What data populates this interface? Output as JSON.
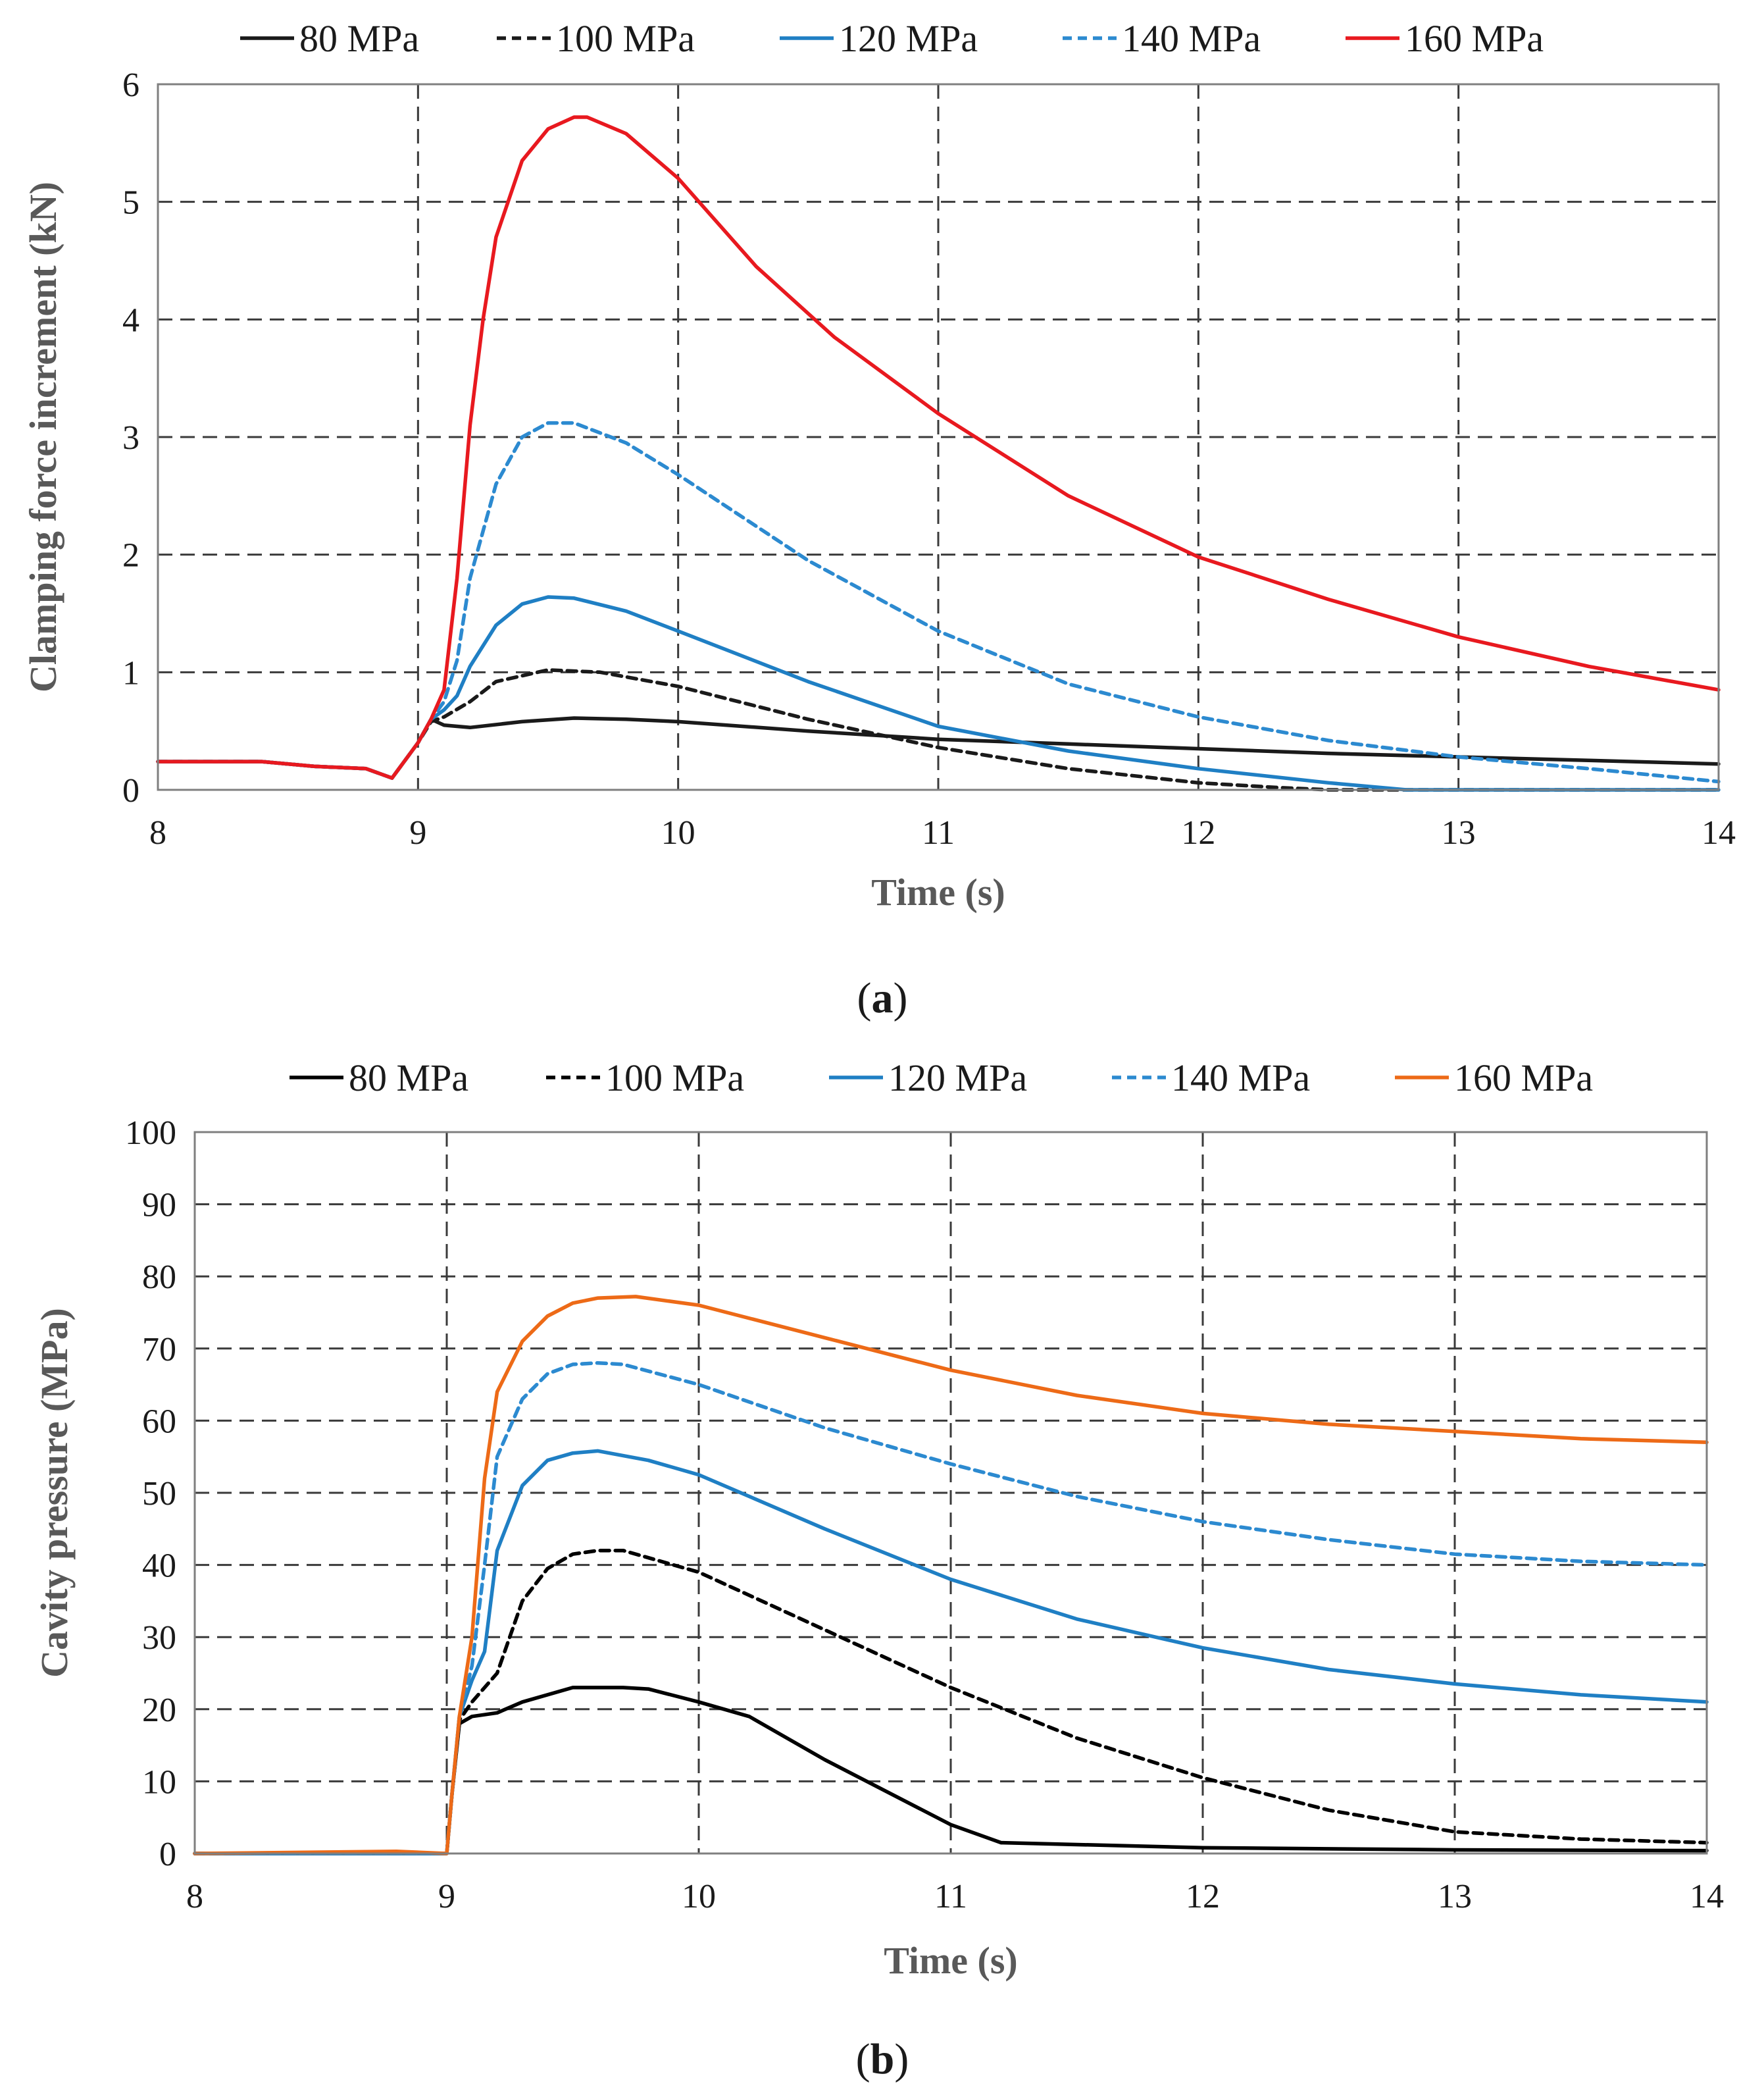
{
  "figure": {
    "captions": {
      "a": "a",
      "b": "b"
    }
  },
  "chart_data": [
    {
      "id": "a",
      "type": "line",
      "title": "",
      "xlabel": "Time (s)",
      "ylabel": "Clamping force increment (kN)",
      "xlim": [
        8,
        14
      ],
      "ylim": [
        0,
        6
      ],
      "xticks": [
        8,
        9,
        10,
        11,
        12,
        13,
        14
      ],
      "yticks": [
        0,
        1,
        2,
        3,
        4,
        5,
        6
      ],
      "grid": true,
      "legend_position": "top",
      "series": [
        {
          "name": "80 MPa",
          "color": "#1a1a1a",
          "dash": "solid",
          "x": [
            8.0,
            8.4,
            8.6,
            8.8,
            8.9,
            9.0,
            9.05,
            9.1,
            9.2,
            9.4,
            9.6,
            9.8,
            10.0,
            10.5,
            11.0,
            11.5,
            12.0,
            12.5,
            13.0,
            13.5,
            14.0
          ],
          "y": [
            0.24,
            0.24,
            0.2,
            0.18,
            0.1,
            0.4,
            0.6,
            0.55,
            0.53,
            0.58,
            0.61,
            0.6,
            0.58,
            0.5,
            0.43,
            0.39,
            0.35,
            0.31,
            0.28,
            0.25,
            0.22
          ]
        },
        {
          "name": "100 MPa",
          "color": "#1a1a1a",
          "dash": "dashed",
          "x": [
            8.0,
            8.4,
            8.6,
            8.8,
            8.9,
            9.0,
            9.05,
            9.1,
            9.2,
            9.3,
            9.5,
            9.7,
            10.0,
            10.5,
            11.0,
            11.5,
            12.0,
            12.3,
            12.5,
            14.0
          ],
          "y": [
            0.24,
            0.24,
            0.2,
            0.18,
            0.1,
            0.4,
            0.58,
            0.62,
            0.75,
            0.92,
            1.02,
            1.0,
            0.88,
            0.6,
            0.36,
            0.18,
            0.06,
            0.02,
            0.0,
            0.0
          ]
        },
        {
          "name": "120 MPa",
          "color": "#1f7fc4",
          "dash": "solid",
          "x": [
            8.0,
            8.4,
            8.6,
            8.8,
            8.9,
            9.0,
            9.05,
            9.1,
            9.15,
            9.2,
            9.3,
            9.4,
            9.5,
            9.6,
            9.8,
            10.0,
            10.5,
            11.0,
            11.5,
            12.0,
            12.5,
            12.8,
            14.0
          ],
          "y": [
            0.24,
            0.24,
            0.2,
            0.18,
            0.1,
            0.4,
            0.6,
            0.68,
            0.8,
            1.05,
            1.4,
            1.58,
            1.64,
            1.63,
            1.52,
            1.35,
            0.92,
            0.54,
            0.33,
            0.18,
            0.06,
            0.0,
            0.0
          ]
        },
        {
          "name": "140 MPa",
          "color": "#2c8ad0",
          "dash": "dashed",
          "x": [
            8.0,
            8.4,
            8.6,
            8.8,
            8.9,
            9.0,
            9.05,
            9.1,
            9.15,
            9.2,
            9.3,
            9.4,
            9.5,
            9.6,
            9.8,
            10.0,
            10.5,
            11.0,
            11.5,
            12.0,
            12.5,
            13.0,
            13.5,
            14.0
          ],
          "y": [
            0.24,
            0.24,
            0.2,
            0.18,
            0.1,
            0.4,
            0.6,
            0.75,
            1.1,
            1.8,
            2.6,
            3.0,
            3.12,
            3.12,
            2.95,
            2.68,
            1.95,
            1.35,
            0.9,
            0.62,
            0.42,
            0.28,
            0.18,
            0.07
          ]
        },
        {
          "name": "160 MPa",
          "color": "#e8191f",
          "dash": "solid",
          "x": [
            8.0,
            8.4,
            8.6,
            8.8,
            8.9,
            9.0,
            9.05,
            9.1,
            9.15,
            9.2,
            9.25,
            9.3,
            9.4,
            9.5,
            9.6,
            9.65,
            9.8,
            10.0,
            10.3,
            10.6,
            11.0,
            11.5,
            12.0,
            12.5,
            13.0,
            13.5,
            14.0
          ],
          "y": [
            0.24,
            0.24,
            0.2,
            0.18,
            0.1,
            0.4,
            0.6,
            0.85,
            1.8,
            3.1,
            4.0,
            4.7,
            5.35,
            5.62,
            5.72,
            5.72,
            5.58,
            5.2,
            4.45,
            3.85,
            3.2,
            2.5,
            1.98,
            1.62,
            1.3,
            1.05,
            0.85
          ]
        }
      ]
    },
    {
      "id": "b",
      "type": "line",
      "title": "",
      "xlabel": "Time (s)",
      "ylabel": "Cavity pressure (MPa)",
      "xlim": [
        8,
        14
      ],
      "ylim": [
        0,
        100
      ],
      "xticks": [
        8,
        9,
        10,
        11,
        12,
        13,
        14
      ],
      "yticks": [
        0,
        10,
        20,
        30,
        40,
        50,
        60,
        70,
        80,
        90,
        100
      ],
      "grid": true,
      "legend_position": "top",
      "series": [
        {
          "name": "80 MPa",
          "color": "#000000",
          "dash": "solid",
          "x": [
            8.0,
            9.0,
            9.02,
            9.05,
            9.1,
            9.2,
            9.3,
            9.5,
            9.7,
            9.8,
            10.0,
            10.2,
            10.5,
            11.0,
            11.2,
            12.0,
            13.0,
            14.0
          ],
          "y": [
            0.0,
            0.0,
            8.0,
            18.0,
            19.0,
            19.5,
            21.0,
            23.0,
            23.0,
            22.8,
            21.0,
            19.0,
            13.0,
            4.0,
            1.5,
            0.8,
            0.5,
            0.4
          ]
        },
        {
          "name": "100 MPa",
          "color": "#000000",
          "dash": "dashed",
          "x": [
            8.0,
            9.0,
            9.02,
            9.05,
            9.1,
            9.2,
            9.3,
            9.4,
            9.5,
            9.6,
            9.7,
            10.0,
            10.5,
            11.0,
            11.5,
            12.0,
            12.5,
            13.0,
            13.5,
            14.0
          ],
          "y": [
            0.0,
            0.0,
            8.0,
            18.5,
            21.0,
            25.0,
            35.0,
            39.5,
            41.5,
            42.0,
            42.0,
            39.0,
            31.0,
            23.0,
            16.0,
            10.5,
            6.0,
            3.0,
            2.0,
            1.5
          ]
        },
        {
          "name": "120 MPa",
          "color": "#1f7fc4",
          "dash": "solid",
          "x": [
            8.0,
            9.0,
            9.02,
            9.05,
            9.1,
            9.15,
            9.2,
            9.3,
            9.4,
            9.5,
            9.6,
            9.8,
            10.0,
            10.5,
            11.0,
            11.5,
            12.0,
            12.5,
            13.0,
            13.5,
            14.0
          ],
          "y": [
            0.0,
            0.0,
            8.0,
            19.0,
            24.0,
            28.0,
            42.0,
            51.0,
            54.5,
            55.5,
            55.8,
            54.5,
            52.5,
            45.0,
            38.0,
            32.5,
            28.5,
            25.5,
            23.5,
            22.0,
            21.0
          ]
        },
        {
          "name": "140 MPa",
          "color": "#2c8ad0",
          "dash": "dashed",
          "x": [
            8.0,
            9.0,
            9.02,
            9.05,
            9.1,
            9.15,
            9.2,
            9.3,
            9.4,
            9.5,
            9.6,
            9.7,
            10.0,
            10.5,
            11.0,
            11.5,
            12.0,
            12.5,
            13.0,
            13.5,
            14.0
          ],
          "y": [
            0.0,
            0.0,
            8.0,
            19.0,
            26.0,
            40.0,
            55.0,
            63.0,
            66.5,
            67.8,
            68.0,
            67.8,
            65.0,
            59.0,
            54.0,
            49.5,
            46.0,
            43.5,
            41.5,
            40.5,
            40.0
          ]
        },
        {
          "name": "160 MPa",
          "color": "#ed6a17",
          "dash": "solid",
          "x": [
            8.0,
            8.8,
            9.0,
            9.02,
            9.05,
            9.1,
            9.15,
            9.2,
            9.3,
            9.4,
            9.5,
            9.6,
            9.75,
            10.0,
            10.5,
            11.0,
            11.5,
            12.0,
            12.5,
            13.0,
            13.5,
            14.0
          ],
          "y": [
            0.0,
            0.3,
            0.0,
            8.0,
            19.0,
            30.0,
            52.0,
            64.0,
            71.0,
            74.5,
            76.3,
            77.0,
            77.2,
            76.0,
            71.5,
            67.0,
            63.5,
            61.0,
            59.5,
            58.5,
            57.5,
            57.0
          ]
        }
      ]
    }
  ]
}
